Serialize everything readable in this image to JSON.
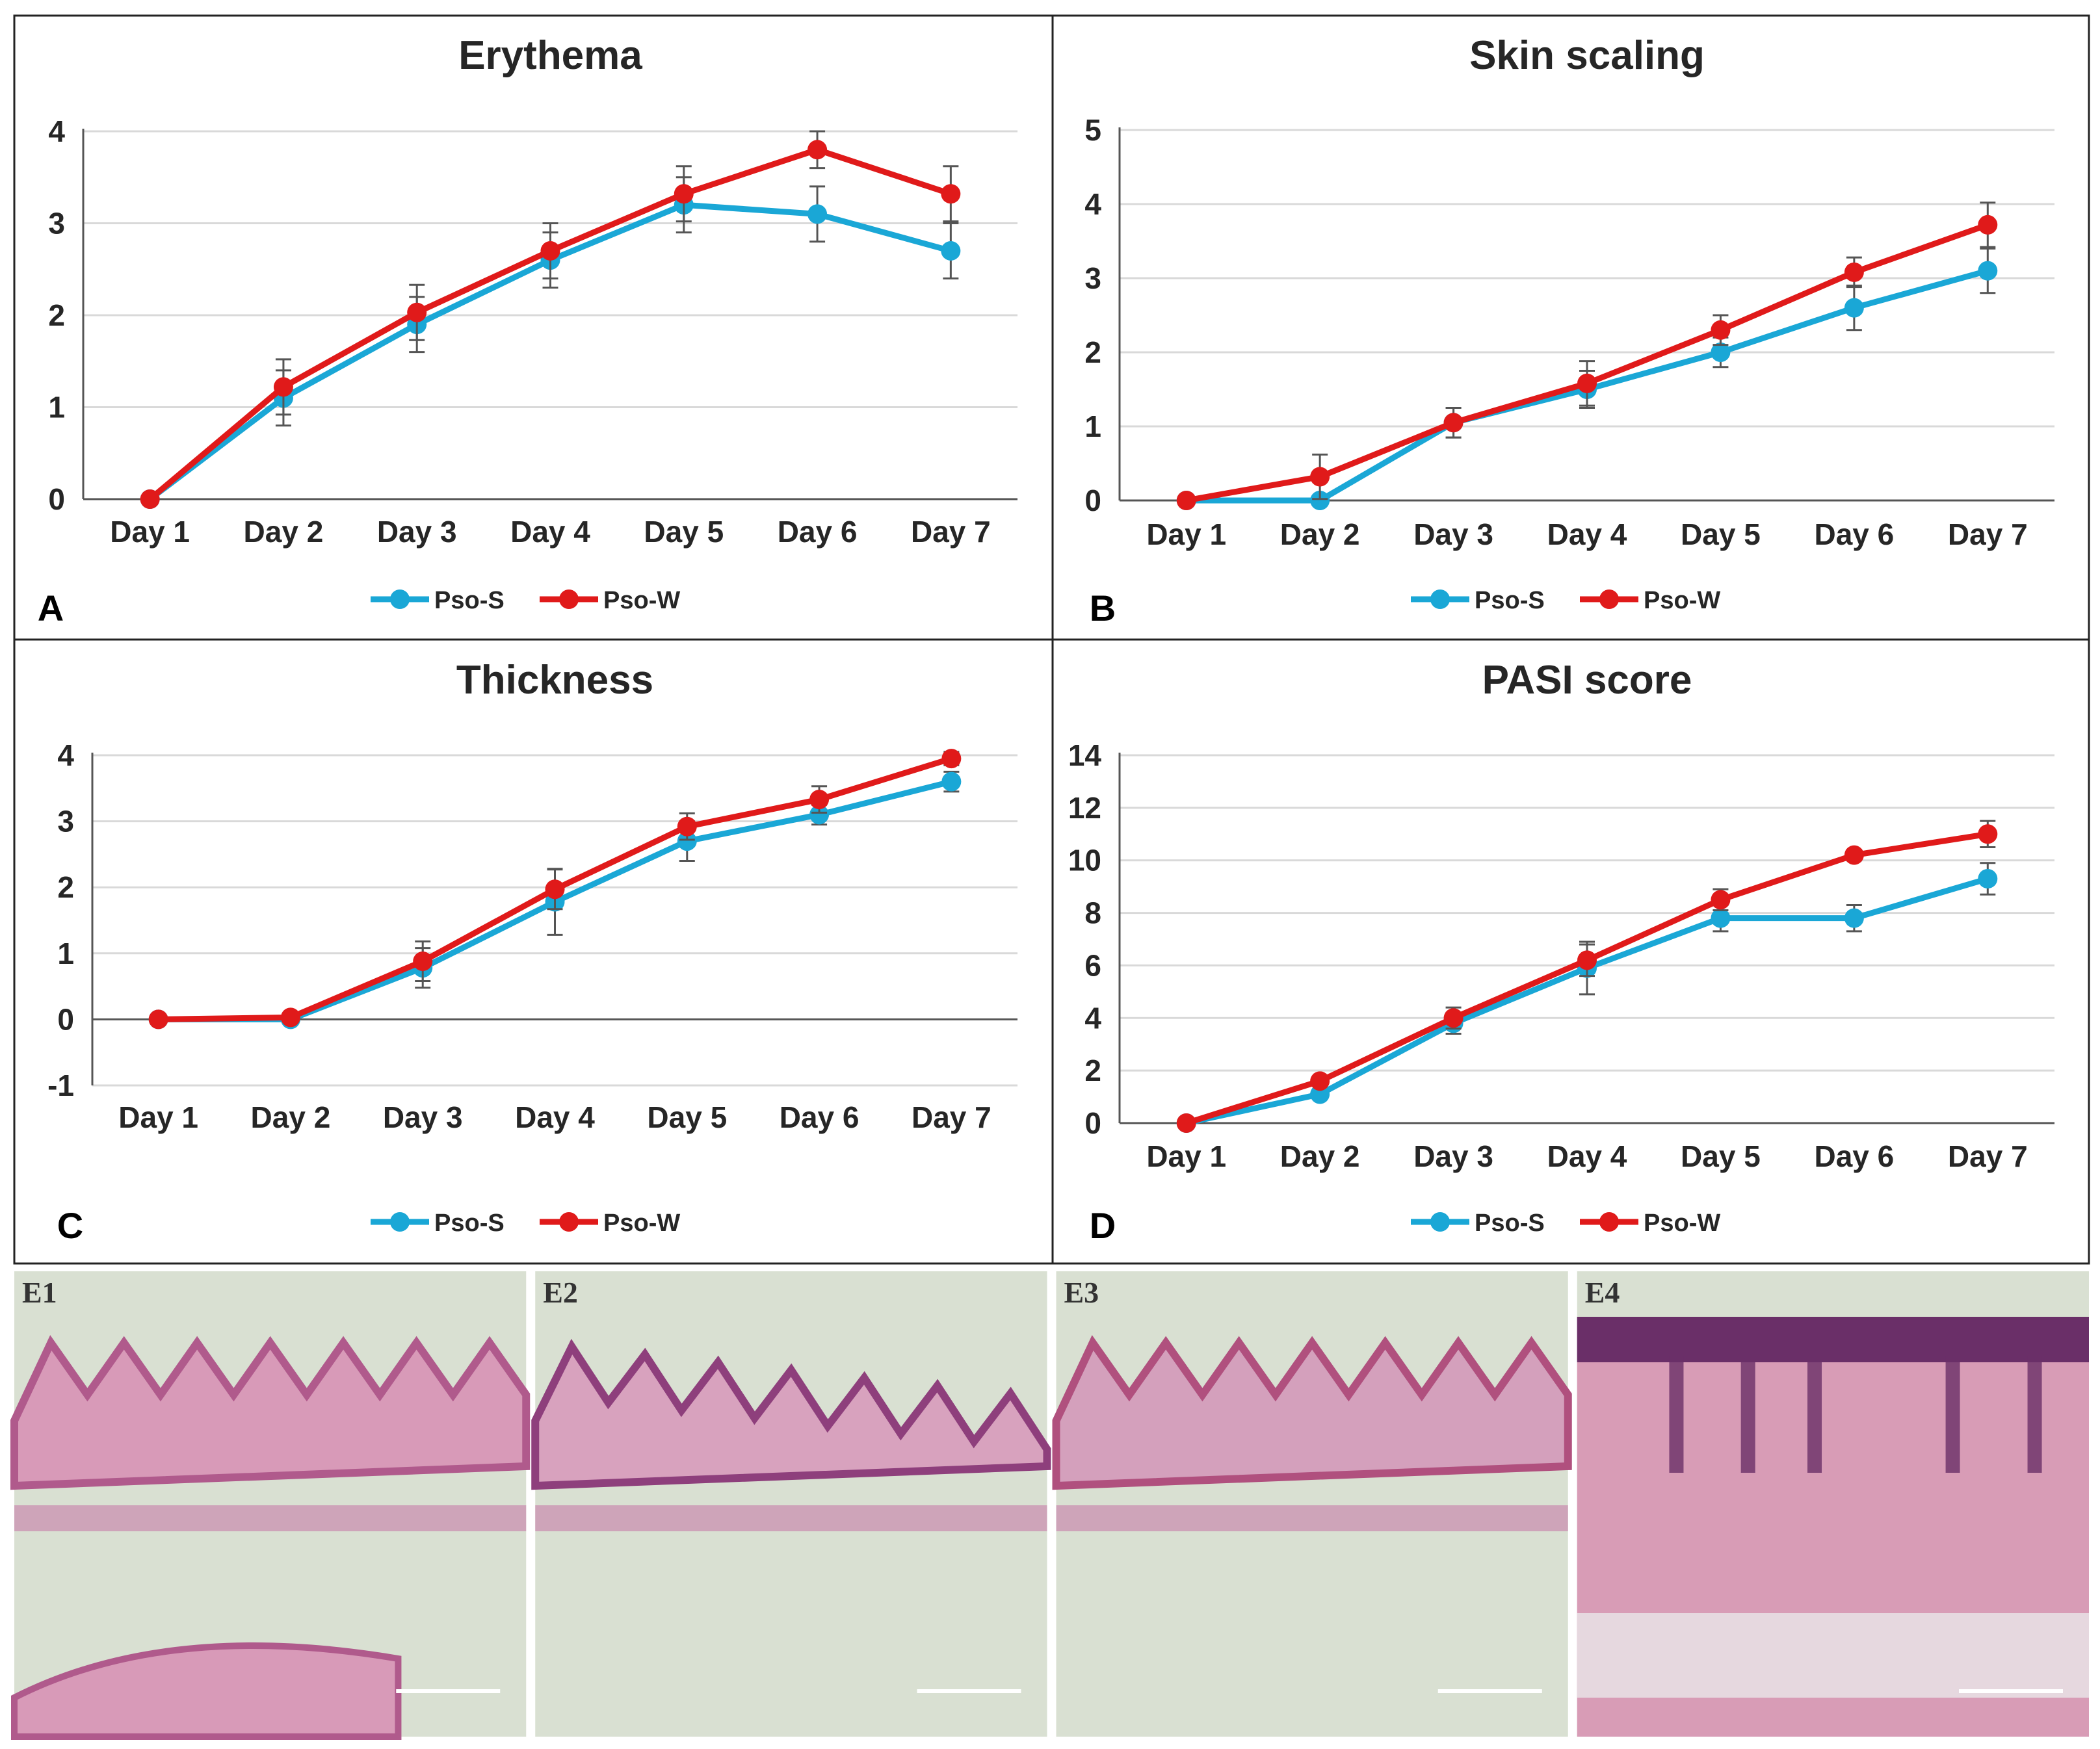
{
  "colors": {
    "pso_s": "#1AA7D6",
    "pso_w": "#E01A1A",
    "grid": "#D9D9D9",
    "axis": "#555555",
    "error_bar": "#555555"
  },
  "legend": {
    "pso_s": "Pso-S",
    "pso_w": "Pso-W"
  },
  "chart_data": [
    {
      "panel": "A",
      "type": "line",
      "title": "Erythema",
      "categories": [
        "Day 1",
        "Day 2",
        "Day 3",
        "Day 4",
        "Day 5",
        "Day 6",
        "Day 7"
      ],
      "ylim": [
        0,
        4
      ],
      "yticks": [
        0,
        1,
        2,
        3,
        4
      ],
      "grid": true,
      "legend_position": "bottom-center",
      "series": [
        {
          "name": "Pso-S",
          "values": [
            0,
            1.1,
            1.9,
            2.6,
            3.2,
            3.1,
            2.7
          ],
          "errors": [
            0,
            0.3,
            0.3,
            0.3,
            0.3,
            0.3,
            0.3
          ]
        },
        {
          "name": "Pso-W",
          "values": [
            0,
            1.22,
            2.03,
            2.7,
            3.32,
            3.8,
            3.32
          ],
          "errors": [
            0,
            0.3,
            0.3,
            0.3,
            0.3,
            0.2,
            0.3
          ]
        }
      ]
    },
    {
      "panel": "B",
      "type": "line",
      "title": "Skin scaling",
      "categories": [
        "Day 1",
        "Day 2",
        "Day 3",
        "Day 4",
        "Day 5",
        "Day 6",
        "Day 7"
      ],
      "ylim": [
        0,
        5
      ],
      "yticks": [
        0,
        1,
        2,
        3,
        4,
        5
      ],
      "grid": true,
      "legend_position": "bottom-center",
      "series": [
        {
          "name": "Pso-S",
          "values": [
            0,
            0,
            1.05,
            1.5,
            2.0,
            2.6,
            3.1
          ],
          "errors": [
            0,
            0,
            0.2,
            0.25,
            0.2,
            0.3,
            0.3
          ]
        },
        {
          "name": "Pso-W",
          "values": [
            0,
            0.32,
            1.05,
            1.58,
            2.3,
            3.08,
            3.72
          ],
          "errors": [
            0,
            0.3,
            0.2,
            0.3,
            0.2,
            0.2,
            0.3
          ]
        }
      ]
    },
    {
      "panel": "C",
      "type": "line",
      "title": "Thickness",
      "categories": [
        "Day 1",
        "Day 2",
        "Day 3",
        "Day 4",
        "Day 5",
        "Day 6",
        "Day 7"
      ],
      "ylim": [
        -1,
        4
      ],
      "yticks": [
        -1,
        0,
        1,
        2,
        3,
        4
      ],
      "grid": true,
      "legend_position": "bottom-center",
      "series": [
        {
          "name": "Pso-S",
          "values": [
            0,
            0,
            0.78,
            1.78,
            2.7,
            3.1,
            3.6
          ],
          "errors": [
            0,
            0,
            0.3,
            0.5,
            0.3,
            0.15,
            0.15
          ]
        },
        {
          "name": "Pso-W",
          "values": [
            0,
            0.03,
            0.88,
            1.97,
            2.92,
            3.33,
            3.95
          ],
          "errors": [
            0,
            0,
            0.3,
            0.3,
            0.2,
            0.2,
            0.1
          ]
        }
      ]
    },
    {
      "panel": "D",
      "type": "line",
      "title": "PASI score",
      "categories": [
        "Day 1",
        "Day 2",
        "Day 3",
        "Day 4",
        "Day 5",
        "Day 6",
        "Day 7"
      ],
      "ylim": [
        0,
        14
      ],
      "yticks": [
        0,
        2,
        4,
        6,
        8,
        10,
        12,
        14
      ],
      "grid": true,
      "legend_position": "bottom-center",
      "series": [
        {
          "name": "Pso-S",
          "values": [
            0,
            1.1,
            3.8,
            5.9,
            7.8,
            7.8,
            9.3
          ],
          "errors": [
            0,
            0,
            0.4,
            1.0,
            0.5,
            0.5,
            0.6
          ]
        },
        {
          "name": "Pso-W",
          "values": [
            0,
            1.6,
            4.0,
            6.2,
            8.5,
            10.2,
            11.0
          ],
          "errors": [
            0,
            0,
            0.4,
            0.6,
            0.4,
            0.2,
            0.5
          ]
        }
      ]
    }
  ],
  "histology": {
    "panels": [
      {
        "label": "E1",
        "tissue": "#D89AB8",
        "band": "#B05A8C"
      },
      {
        "label": "E2",
        "tissue": "#D8A2BE",
        "band": "#8E3F7C"
      },
      {
        "label": "E3",
        "tissue": "#D4A0BC",
        "band": "#B0507E"
      },
      {
        "label": "E4",
        "tissue": "#D89CB6",
        "band": "#6A2F68"
      }
    ]
  }
}
